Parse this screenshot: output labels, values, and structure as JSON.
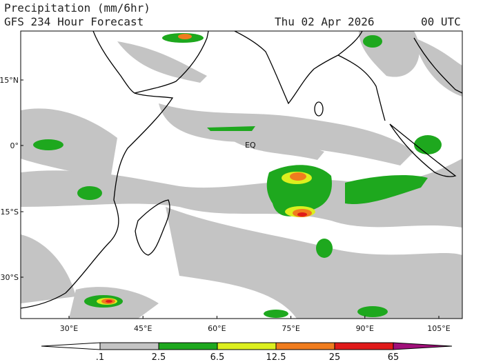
{
  "header": {
    "title": "Precipitation (mm/6hr)",
    "subtitle": "GFS 234 Hour Forecast",
    "date": "Thu 02 Apr 2026",
    "time": "00 UTC"
  },
  "map": {
    "lat_labels": [
      "15°N",
      "0°",
      "15°S",
      "30°S"
    ],
    "lon_labels": [
      "30°E",
      "45°E",
      "60°E",
      "75°E",
      "90°E",
      "105°E"
    ],
    "equator_label": "EQ"
  },
  "colorbar": {
    "labels": [
      ".1",
      "2.5",
      "6.5",
      "12.5",
      "25",
      "65"
    ]
  }
}
